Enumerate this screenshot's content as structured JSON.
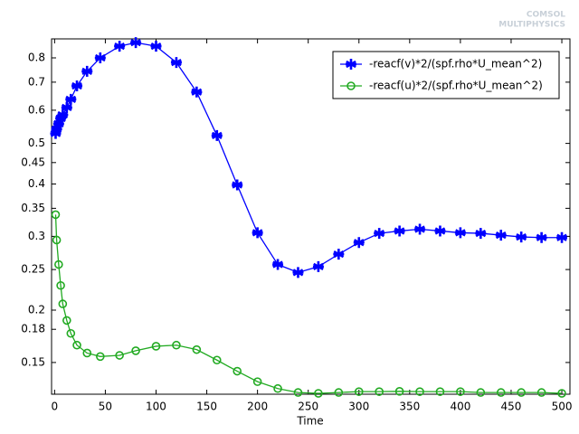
{
  "chart_data": {
    "type": "line",
    "x_label": "Time",
    "watermark": [
      "COMSOL",
      "MULTIPHYSICS"
    ],
    "log_y": true,
    "legend": "top-right",
    "xlim": [
      -3,
      508
    ],
    "xticks": [
      0,
      50,
      100,
      150,
      200,
      250,
      300,
      350,
      400,
      450,
      500
    ],
    "ylim": [
      0.126,
      0.888
    ],
    "yticks": [
      0.15,
      0.18,
      0.2,
      0.25,
      0.3,
      0.35,
      0.4,
      0.45,
      0.5,
      0.6,
      0.7,
      0.8
    ],
    "series": [
      {
        "name": "-reacf(v)*2/(spf.rho*U_mean^2)",
        "color": "#0000ff",
        "marker": "asterisk",
        "x": [
          1,
          2,
          4,
          6,
          8,
          12,
          16,
          22,
          32,
          45,
          64,
          80,
          100,
          120,
          140,
          160,
          180,
          200,
          220,
          240,
          260,
          280,
          300,
          320,
          340,
          360,
          380,
          400,
          420,
          440,
          460,
          480,
          500
        ],
        "values": [
          0.528,
          0.541,
          0.557,
          0.574,
          0.585,
          0.609,
          0.637,
          0.686,
          0.743,
          0.8,
          0.853,
          0.87,
          0.853,
          0.78,
          0.663,
          0.522,
          0.398,
          0.306,
          0.257,
          0.246,
          0.254,
          0.272,
          0.29,
          0.305,
          0.309,
          0.312,
          0.309,
          0.306,
          0.305,
          0.302,
          0.299,
          0.298,
          0.298
        ]
      },
      {
        "name": "-reacf(u)*2/(spf.rho*U_mean^2)",
        "color": "#22aa22",
        "marker": "circle",
        "x": [
          1,
          2,
          4,
          6,
          8,
          12,
          16,
          22,
          32,
          45,
          64,
          80,
          100,
          120,
          140,
          160,
          180,
          200,
          220,
          240,
          260,
          280,
          300,
          320,
          340,
          360,
          380,
          400,
          420,
          440,
          460,
          480,
          500
        ],
        "values": [
          0.338,
          0.294,
          0.257,
          0.229,
          0.207,
          0.189,
          0.176,
          0.165,
          0.158,
          0.155,
          0.156,
          0.16,
          0.164,
          0.165,
          0.161,
          0.152,
          0.143,
          0.135,
          0.13,
          0.1272,
          0.1266,
          0.1272,
          0.1278,
          0.1278,
          0.128,
          0.1278,
          0.1278,
          0.1278,
          0.1272,
          0.1272,
          0.1272,
          0.1272,
          0.1266
        ]
      }
    ]
  }
}
